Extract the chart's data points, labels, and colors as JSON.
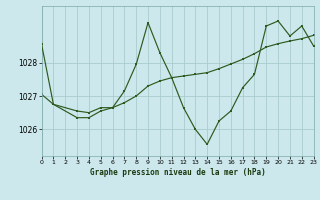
{
  "title": "Graphe pression niveau de la mer (hPa)",
  "bg_color": "#cce8ec",
  "grid_color": "#aacccc",
  "line_color": "#2d5a1e",
  "x_min": 0,
  "x_max": 23,
  "y_min": 1025.2,
  "y_max": 1029.7,
  "yticks": [
    1026,
    1027,
    1028
  ],
  "xticks": [
    0,
    1,
    2,
    3,
    4,
    5,
    6,
    7,
    8,
    9,
    10,
    11,
    12,
    13,
    14,
    15,
    16,
    17,
    18,
    19,
    20,
    21,
    22,
    23
  ],
  "series1_x": [
    0,
    1,
    3,
    4,
    5,
    6,
    7,
    8,
    9,
    10,
    11,
    12,
    13,
    14,
    15,
    16,
    17,
    18,
    19,
    20,
    21,
    22,
    23
  ],
  "series1_y": [
    1028.55,
    1026.75,
    1026.55,
    1026.5,
    1026.65,
    1026.65,
    1027.15,
    1027.95,
    1029.2,
    1028.3,
    1027.55,
    1026.65,
    1026.0,
    1025.55,
    1026.25,
    1026.55,
    1027.25,
    1027.65,
    1029.1,
    1029.25,
    1028.8,
    1029.1,
    1028.5
  ],
  "series2_x": [
    0,
    1,
    3,
    4,
    5,
    6,
    7,
    8,
    9,
    10,
    11,
    12,
    13,
    14,
    15,
    16,
    17,
    18,
    19,
    20,
    21,
    22,
    23
  ],
  "series2_y": [
    1027.05,
    1026.75,
    1026.35,
    1026.35,
    1026.55,
    1026.65,
    1026.8,
    1027.0,
    1027.3,
    1027.45,
    1027.55,
    1027.6,
    1027.65,
    1027.7,
    1027.82,
    1027.96,
    1028.1,
    1028.27,
    1028.47,
    1028.57,
    1028.65,
    1028.72,
    1028.82
  ]
}
